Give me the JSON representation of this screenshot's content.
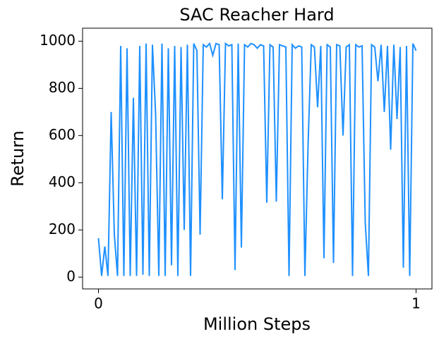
{
  "chart_data": {
    "type": "line",
    "title": "SAC Reacher Hard",
    "x_label": "Million Steps",
    "y_label": "Return",
    "x": [
      0.0,
      0.01,
      0.02,
      0.03,
      0.04,
      0.05,
      0.06,
      0.07,
      0.08,
      0.09,
      0.1,
      0.11,
      0.12,
      0.13,
      0.14,
      0.15,
      0.16,
      0.17,
      0.18,
      0.19,
      0.2,
      0.21,
      0.22,
      0.23,
      0.24,
      0.25,
      0.26,
      0.27,
      0.28,
      0.29,
      0.3,
      0.31,
      0.32,
      0.33,
      0.34,
      0.35,
      0.36,
      0.37,
      0.38,
      0.39,
      0.4,
      0.41,
      0.42,
      0.43,
      0.44,
      0.45,
      0.46,
      0.47,
      0.48,
      0.49,
      0.5,
      0.51,
      0.52,
      0.53,
      0.54,
      0.55,
      0.56,
      0.57,
      0.58,
      0.59,
      0.6,
      0.61,
      0.62,
      0.63,
      0.64,
      0.65,
      0.66,
      0.67,
      0.68,
      0.69,
      0.7,
      0.71,
      0.72,
      0.73,
      0.74,
      0.75,
      0.76,
      0.77,
      0.78,
      0.79,
      0.8,
      0.81,
      0.82,
      0.83,
      0.84,
      0.85,
      0.86,
      0.87,
      0.88,
      0.89,
      0.9,
      0.91,
      0.92,
      0.93,
      0.94,
      0.95,
      0.96,
      0.97,
      0.98,
      0.99,
      1.0
    ],
    "values": [
      165,
      5,
      130,
      5,
      700,
      180,
      5,
      980,
      5,
      970,
      5,
      760,
      5,
      980,
      10,
      990,
      5,
      985,
      690,
      5,
      990,
      5,
      970,
      50,
      980,
      5,
      975,
      200,
      985,
      5,
      990,
      960,
      180,
      985,
      975,
      990,
      940,
      990,
      985,
      330,
      990,
      980,
      985,
      30,
      990,
      125,
      985,
      975,
      990,
      985,
      970,
      985,
      980,
      315,
      985,
      975,
      320,
      985,
      980,
      975,
      5,
      985,
      970,
      980,
      975,
      5,
      560,
      985,
      975,
      720,
      980,
      80,
      985,
      975,
      60,
      985,
      980,
      600,
      975,
      985,
      5,
      985,
      975,
      980,
      230,
      5,
      985,
      975,
      830,
      985,
      700,
      980,
      540,
      985,
      670,
      975,
      40,
      980,
      5,
      990,
      960
    ],
    "color": "#1e90ff",
    "xlim": [
      -0.05,
      1.05
    ],
    "xticks": [
      0,
      1
    ],
    "ylim": [
      -50,
      1055
    ],
    "yticks": [
      0,
      200,
      400,
      600,
      800,
      1000
    ]
  }
}
